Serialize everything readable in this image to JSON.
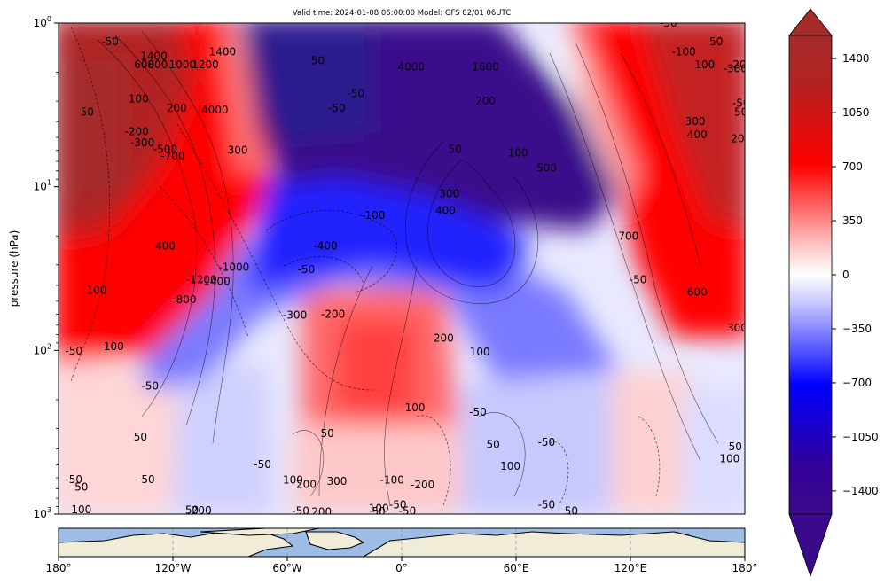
{
  "chart_data": {
    "type": "heatmap",
    "title": "Valid time: 2024-01-08 06:00:00 Model: GFS 02/01 06UTC",
    "ylabel": "pressure (hPa)",
    "xlabel": "",
    "y_scale": "log",
    "y_range_hpa": [
      1000,
      1
    ],
    "y_ticks": [
      {
        "value": 1000,
        "base": "10",
        "exp": "3"
      },
      {
        "value": 100,
        "base": "10",
        "exp": "2"
      },
      {
        "value": 10,
        "base": "10",
        "exp": "1"
      },
      {
        "value": 1,
        "base": "10",
        "exp": "0"
      }
    ],
    "x_range_deg": [
      -180,
      180
    ],
    "x_ticks": [
      {
        "value": -180,
        "label": "180°"
      },
      {
        "value": -120,
        "label": "120°W"
      },
      {
        "value": -60,
        "label": "60°W"
      },
      {
        "value": 0,
        "label": "0°"
      },
      {
        "value": 60,
        "label": "60°E"
      },
      {
        "value": 120,
        "label": "120°E"
      },
      {
        "value": 180,
        "label": "180°"
      }
    ],
    "colorbar": {
      "range": [
        -1550,
        1550
      ],
      "ticks": [
        1400,
        1050,
        700,
        350,
        0,
        -350,
        -700,
        -1050,
        -1400
      ],
      "tick_labels": [
        "1400",
        "1050",
        "700",
        "350",
        "0",
        "−350",
        "−700",
        "−1050",
        "−1400"
      ],
      "extend": "both",
      "colors": {
        "low": "#3a0a8a",
        "mid_low": "#0000ff",
        "zero": "#ffffff",
        "mid_high": "#ff0000",
        "high": "#a52a2a"
      }
    },
    "contour_labels": [
      {
        "lon": -153,
        "p": 1.3,
        "t": "-50"
      },
      {
        "lon": -130,
        "p": 1.6,
        "t": "1400"
      },
      {
        "lon": -135,
        "p": 1.8,
        "t": "600"
      },
      {
        "lon": -128,
        "p": 1.8,
        "t": "800"
      },
      {
        "lon": -115,
        "p": 1.8,
        "t": "1000"
      },
      {
        "lon": -103,
        "p": 1.8,
        "t": "1200"
      },
      {
        "lon": -138,
        "p": 2.9,
        "t": "100"
      },
      {
        "lon": -165,
        "p": 3.5,
        "t": "50"
      },
      {
        "lon": -118,
        "p": 3.3,
        "t": "200"
      },
      {
        "lon": -98,
        "p": 3.4,
        "t": "4000"
      },
      {
        "lon": -94,
        "p": 1.5,
        "t": "1400"
      },
      {
        "lon": -139,
        "p": 4.6,
        "t": "-200"
      },
      {
        "lon": -136,
        "p": 5.4,
        "t": "-300"
      },
      {
        "lon": -124,
        "p": 5.9,
        "t": "-500"
      },
      {
        "lon": -120,
        "p": 6.5,
        "t": "-700"
      },
      {
        "lon": -86,
        "p": 6.0,
        "t": "300"
      },
      {
        "lon": -44,
        "p": 1.7,
        "t": "50"
      },
      {
        "lon": -34,
        "p": 3.3,
        "t": "-50"
      },
      {
        "lon": -24,
        "p": 2.7,
        "t": "-50"
      },
      {
        "lon": 5,
        "p": 1.85,
        "t": "4000"
      },
      {
        "lon": 44,
        "p": 1.85,
        "t": "1600"
      },
      {
        "lon": 44,
        "p": 3.0,
        "t": "200"
      },
      {
        "lon": 148,
        "p": 1.5,
        "t": "-100"
      },
      {
        "lon": 165,
        "p": 1.3,
        "t": "50"
      },
      {
        "lon": 159,
        "p": 1.8,
        "t": "100"
      },
      {
        "lon": 140,
        "p": 1.0,
        "t": "-50"
      },
      {
        "lon": 175,
        "p": 1.9,
        "t": "-300"
      },
      {
        "lon": 196,
        "p": 1.8,
        "t": "-200"
      },
      {
        "lon": 187,
        "p": 3.1,
        "t": "-50"
      },
      {
        "lon": 180,
        "p": 3.5,
        "t": "50"
      },
      {
        "lon": 154,
        "p": 4.0,
        "t": "300"
      },
      {
        "lon": 155,
        "p": 4.8,
        "t": "400"
      },
      {
        "lon": 188,
        "p": 5.1,
        "t": "200"
      },
      {
        "lon": 28,
        "p": 5.9,
        "t": "50"
      },
      {
        "lon": 61,
        "p": 6.2,
        "t": "100"
      },
      {
        "lon": 76,
        "p": 7.7,
        "t": "500"
      },
      {
        "lon": 25,
        "p": 11,
        "t": "300"
      },
      {
        "lon": 23,
        "p": 14,
        "t": "400"
      },
      {
        "lon": -15,
        "p": 15,
        "t": "-100"
      },
      {
        "lon": -40,
        "p": 23,
        "t": "-400"
      },
      {
        "lon": -88,
        "p": 31,
        "t": "-1000"
      },
      {
        "lon": -124,
        "p": 23,
        "t": "400"
      },
      {
        "lon": -50,
        "p": 32,
        "t": "-50"
      },
      {
        "lon": -105,
        "p": 37,
        "t": "-1200"
      },
      {
        "lon": -98,
        "p": 38,
        "t": "-1400"
      },
      {
        "lon": -114,
        "p": 49,
        "t": "-800"
      },
      {
        "lon": -160,
        "p": 43,
        "t": "100"
      },
      {
        "lon": -56,
        "p": 61,
        "t": "-300"
      },
      {
        "lon": -36,
        "p": 60,
        "t": "-200"
      },
      {
        "lon": -152,
        "p": 95,
        "t": "-100"
      },
      {
        "lon": -172,
        "p": 101,
        "t": "-50"
      },
      {
        "lon": -132,
        "p": 165,
        "t": "-50"
      },
      {
        "lon": 119,
        "p": 20,
        "t": "700"
      },
      {
        "lon": 124,
        "p": 37,
        "t": "-50"
      },
      {
        "lon": 155,
        "p": 44,
        "t": "600"
      },
      {
        "lon": 176,
        "p": 73,
        "t": "300"
      },
      {
        "lon": 22,
        "p": 84,
        "t": "200"
      },
      {
        "lon": 41,
        "p": 102,
        "t": "100"
      },
      {
        "lon": 7,
        "p": 224,
        "t": "100"
      },
      {
        "lon": 40,
        "p": 238,
        "t": "-50"
      },
      {
        "lon": -39,
        "p": 322,
        "t": "50"
      },
      {
        "lon": -137,
        "p": 337,
        "t": "50"
      },
      {
        "lon": 48,
        "p": 375,
        "t": "50"
      },
      {
        "lon": -73,
        "p": 497,
        "t": "-50"
      },
      {
        "lon": -57,
        "p": 618,
        "t": "100"
      },
      {
        "lon": -50,
        "p": 660,
        "t": "200"
      },
      {
        "lon": -34,
        "p": 632,
        "t": "300"
      },
      {
        "lon": -5,
        "p": 618,
        "t": "-100"
      },
      {
        "lon": 11,
        "p": 661,
        "t": "-200"
      },
      {
        "lon": 57,
        "p": 510,
        "t": "100"
      },
      {
        "lon": 76,
        "p": 364,
        "t": "-50"
      },
      {
        "lon": 175,
        "p": 387,
        "t": "50"
      },
      {
        "lon": 172,
        "p": 458,
        "t": "100"
      },
      {
        "lon": -168,
        "p": 684,
        "t": "50"
      },
      {
        "lon": -172,
        "p": 616,
        "t": "-50"
      },
      {
        "lon": -134,
        "p": 614,
        "t": "-50"
      },
      {
        "lon": -168,
        "p": 939,
        "t": "100"
      },
      {
        "lon": -110,
        "p": 948,
        "t": "50"
      },
      {
        "lon": -105,
        "p": 950,
        "t": "200"
      },
      {
        "lon": -53,
        "p": 960,
        "t": "-50"
      },
      {
        "lon": -42,
        "p": 970,
        "t": "200"
      },
      {
        "lon": -12,
        "p": 925,
        "t": "100"
      },
      {
        "lon": -12,
        "p": 965,
        "t": "50"
      },
      {
        "lon": 3,
        "p": 960,
        "t": "-50"
      },
      {
        "lon": -2,
        "p": 875,
        "t": "-50"
      },
      {
        "lon": 76,
        "p": 880,
        "t": "-50"
      },
      {
        "lon": 89,
        "p": 960,
        "t": "50"
      }
    ]
  }
}
